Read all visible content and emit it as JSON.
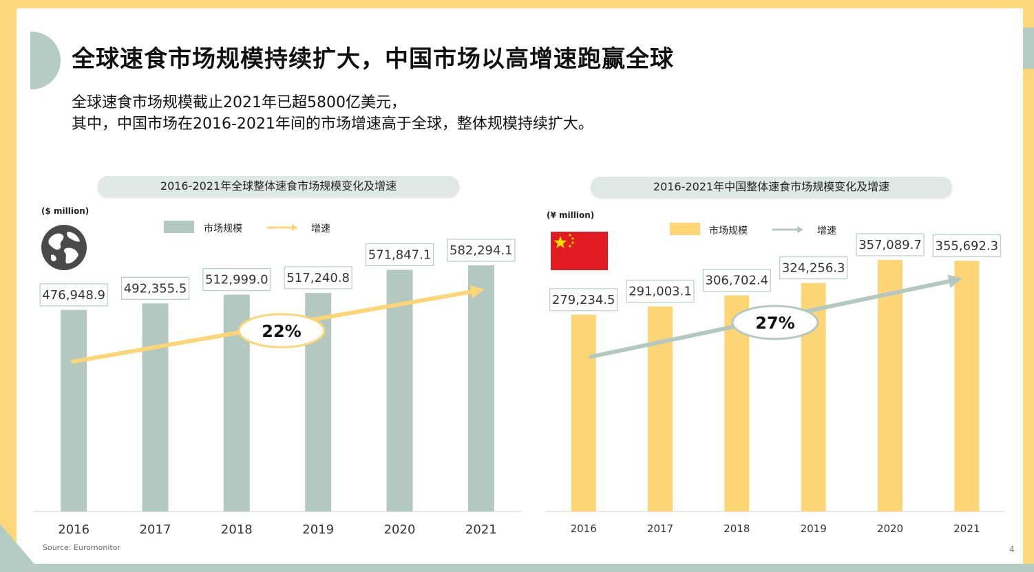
{
  "title": "全球速食市场规模持续扩大，中国市场以高增速跑赢全球",
  "subtitle_line1": "全球速食市场规模截止2021年已超5800亿美元，",
  "subtitle_line2": "其中，中国市场在2016-2021年间的市场增速高于全球，整体规模持续扩大。",
  "source": "Source:  Euromonitor",
  "page_number": "4",
  "icons": {
    "globe": "globe-icon",
    "flag": "china-flag-icon"
  },
  "colors": {
    "global_bar": "#b2c8c1",
    "china_bar": "#fdd574",
    "global_arrow": "#fdd574",
    "china_arrow": "#b2c8c1"
  },
  "chart_data": [
    {
      "type": "bar",
      "title": "2016-2021年全球整体速食市场规模变化及增速",
      "unit": "($ million)",
      "categories": [
        "2016",
        "2017",
        "2018",
        "2019",
        "2020",
        "2021"
      ],
      "series": [
        {
          "name": "市场规模",
          "values": [
            476948.9,
            492355.5,
            512999.0,
            517240.8,
            571847.1,
            582294.1
          ]
        }
      ],
      "value_labels": [
        "476,948.9",
        "492,355.5",
        "512,999.0",
        "517,240.8",
        "571,847.1",
        "582,294.1"
      ],
      "legend": [
        "市场规模",
        "增速"
      ],
      "growth_rate": "22%",
      "ylim": [
        0,
        600000
      ]
    },
    {
      "type": "bar",
      "title": "2016-2021年中国整体速食市场规模变化及增速",
      "unit": "(¥ million)",
      "categories": [
        "2016",
        "2017",
        "2018",
        "2019",
        "2020",
        "2021"
      ],
      "series": [
        {
          "name": "市场规模",
          "values": [
            279234.5,
            291003.1,
            306702.4,
            324256.3,
            357089.7,
            355692.3
          ]
        }
      ],
      "value_labels": [
        "279,234.5",
        "291,003.1",
        "306,702.4",
        "324,256.3",
        "357,089.7",
        "355,692.3"
      ],
      "legend": [
        "市场规模",
        "增速"
      ],
      "growth_rate": "27%",
      "ylim": [
        0,
        365000
      ]
    }
  ]
}
